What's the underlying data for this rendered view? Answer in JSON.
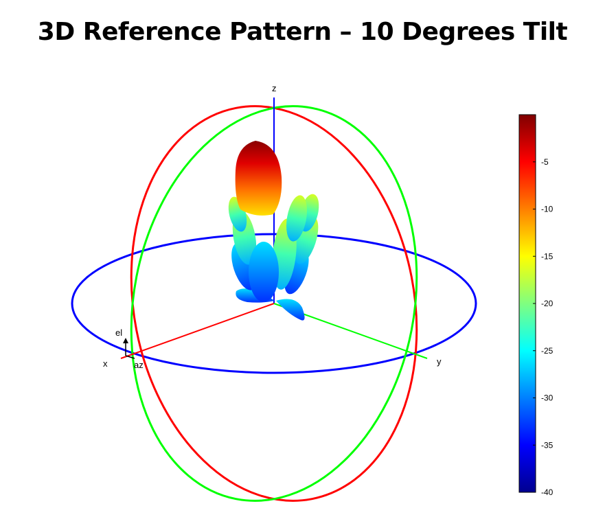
{
  "title": "3D Reference Pattern – 10 Degrees Tilt",
  "chart_data": {
    "type": "3d-radiation-pattern",
    "title": "3D Reference Pattern – 10 Degrees Tilt",
    "axis_labels": {
      "x": "x",
      "y": "y",
      "z": "z",
      "el": "el",
      "az": "az"
    },
    "axis_colors": {
      "x": "#ff0000",
      "y": "#00ff00",
      "z": "#0000ff"
    },
    "great_circles": [
      {
        "name": "xz-plane",
        "color": "#ff0000"
      },
      {
        "name": "yz-plane",
        "color": "#00ff00"
      },
      {
        "name": "xy-plane",
        "color": "#0000ff"
      }
    ],
    "tilt_deg": 10,
    "colorbar": {
      "ticks": [
        -5,
        -10,
        -15,
        -20,
        -25,
        -30,
        -35,
        -40
      ],
      "range": [
        -40,
        0
      ],
      "colormap": "jet"
    },
    "lobes": [
      {
        "level_db": 0
      },
      {
        "level_db": -14
      },
      {
        "level_db": -16
      },
      {
        "level_db": -18
      },
      {
        "level_db": -21
      },
      {
        "level_db": -24
      },
      {
        "level_db": -27
      },
      {
        "level_db": -31
      },
      {
        "level_db": -35
      }
    ]
  }
}
